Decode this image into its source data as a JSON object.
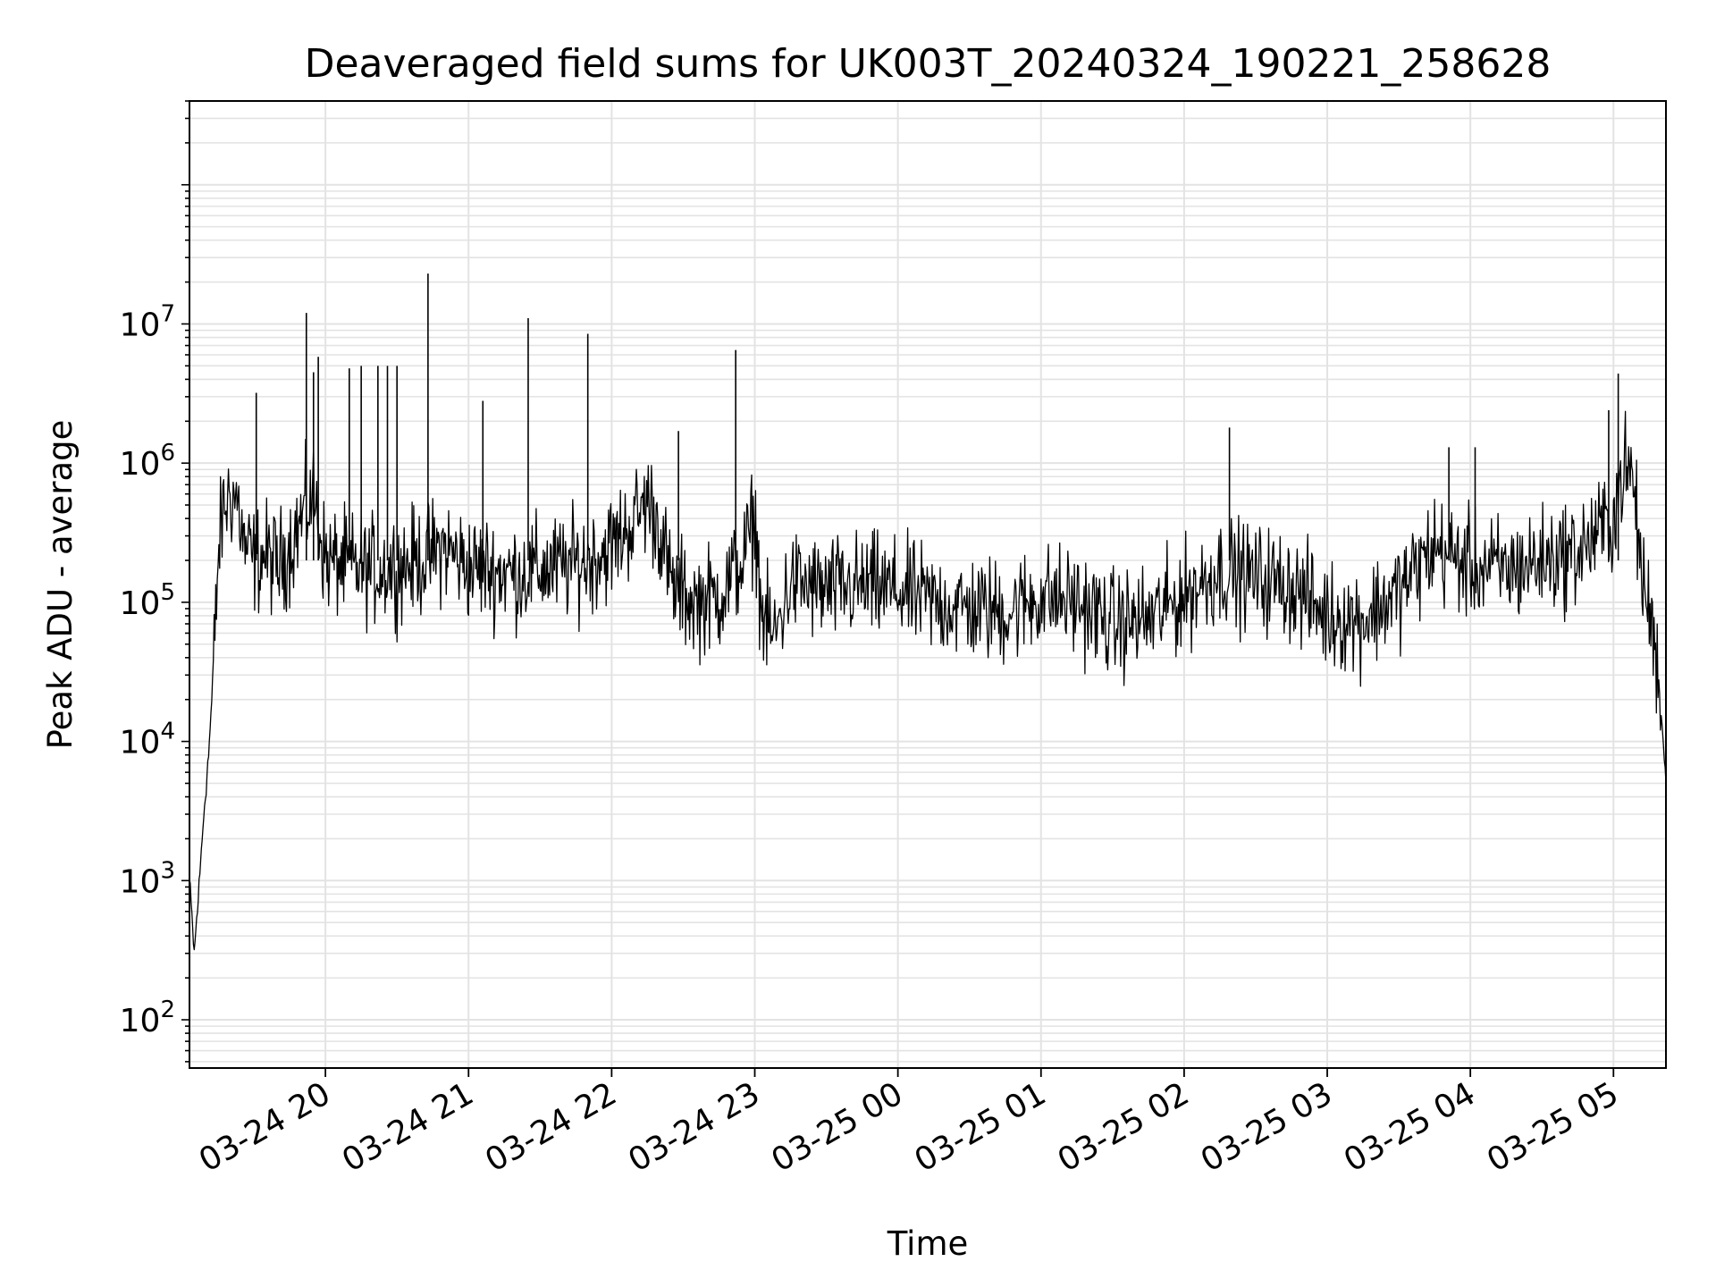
{
  "chart_data": {
    "type": "line",
    "title": "Deaveraged field sums for UK003T_20240324_190221_258628",
    "xlabel": "Time",
    "ylabel": "Peak ADU - average",
    "yscale": "log",
    "ylim": [
      45,
      400000000
    ],
    "xlim": [
      "2024-03-24 19:03",
      "2024-03-25 05:22"
    ],
    "grid": true,
    "line_color": "#000000",
    "grid_color": "#e3e3e3",
    "x_ticks": [
      {
        "t": "2024-03-24 20:00",
        "label": "03-24 20"
      },
      {
        "t": "2024-03-24 21:00",
        "label": "03-24 21"
      },
      {
        "t": "2024-03-24 22:00",
        "label": "03-24 22"
      },
      {
        "t": "2024-03-24 23:00",
        "label": "03-24 23"
      },
      {
        "t": "2024-03-25 00:00",
        "label": "03-25 00"
      },
      {
        "t": "2024-03-25 01:00",
        "label": "03-25 01"
      },
      {
        "t": "2024-03-25 02:00",
        "label": "03-25 02"
      },
      {
        "t": "2024-03-25 03:00",
        "label": "03-25 03"
      },
      {
        "t": "2024-03-25 04:00",
        "label": "03-25 04"
      },
      {
        "t": "2024-03-25 05:00",
        "label": "03-25 05"
      }
    ],
    "y_ticks": [
      {
        "value": 100,
        "base": "10",
        "exp": "2"
      },
      {
        "value": 1000,
        "base": "10",
        "exp": "3"
      },
      {
        "value": 10000,
        "base": "10",
        "exp": "4"
      },
      {
        "value": 100000,
        "base": "10",
        "exp": "5"
      },
      {
        "value": 1000000,
        "base": "10",
        "exp": "6"
      },
      {
        "value": 10000000,
        "base": "10",
        "exp": "7"
      }
    ],
    "series": [
      {
        "points": [
          [
            "2024-03-24 19:03",
            1000
          ],
          [
            "2024-03-24 19:05",
            300
          ],
          [
            "2024-03-24 19:07",
            900
          ],
          [
            "2024-03-24 19:09",
            3000
          ],
          [
            "2024-03-24 19:11",
            8000
          ],
          [
            "2024-03-24 19:13",
            30000
          ],
          [
            "2024-03-24 19:15",
            200000
          ],
          [
            "2024-03-24 19:17",
            450000
          ],
          [
            "2024-03-24 19:20",
            600000
          ],
          [
            "2024-03-24 19:23",
            550000
          ],
          [
            "2024-03-24 19:26",
            250000
          ],
          [
            "2024-03-24 19:30",
            200000
          ],
          [
            "2024-03-24 19:35",
            220000
          ],
          [
            "2024-03-24 19:40",
            180000
          ],
          [
            "2024-03-24 19:45",
            250000
          ],
          [
            "2024-03-24 19:50",
            400000
          ],
          [
            "2024-03-24 19:55",
            600000
          ],
          [
            "2024-03-24 20:00",
            200000
          ],
          [
            "2024-03-24 20:10",
            180000
          ],
          [
            "2024-03-24 20:20",
            170000
          ],
          [
            "2024-03-24 20:30",
            180000
          ],
          [
            "2024-03-24 20:40",
            200000
          ],
          [
            "2024-03-24 20:50",
            250000
          ],
          [
            "2024-03-24 21:00",
            180000
          ],
          [
            "2024-03-24 21:10",
            170000
          ],
          [
            "2024-03-24 21:20",
            160000
          ],
          [
            "2024-03-24 21:30",
            170000
          ],
          [
            "2024-03-24 21:40",
            180000
          ],
          [
            "2024-03-24 21:50",
            200000
          ],
          [
            "2024-03-24 22:00",
            250000
          ],
          [
            "2024-03-24 22:10",
            400000
          ],
          [
            "2024-03-24 22:15",
            550000
          ],
          [
            "2024-03-24 22:20",
            350000
          ],
          [
            "2024-03-24 22:25",
            130000
          ],
          [
            "2024-03-24 22:35",
            100000
          ],
          [
            "2024-03-24 22:45",
            110000
          ],
          [
            "2024-03-24 22:55",
            200000
          ],
          [
            "2024-03-24 23:00",
            400000
          ],
          [
            "2024-03-24 23:03",
            80000
          ],
          [
            "2024-03-24 23:08",
            55000
          ],
          [
            "2024-03-24 23:15",
            140000
          ],
          [
            "2024-03-24 23:30",
            120000
          ],
          [
            "2024-03-24 23:45",
            130000
          ],
          [
            "2024-03-25 00:00",
            120000
          ],
          [
            "2024-03-25 00:15",
            100000
          ],
          [
            "2024-03-25 00:30",
            90000
          ],
          [
            "2024-03-25 00:45",
            85000
          ],
          [
            "2024-03-25 01:00",
            110000
          ],
          [
            "2024-03-25 01:15",
            100000
          ],
          [
            "2024-03-25 01:30",
            70000
          ],
          [
            "2024-03-25 01:45",
            75000
          ],
          [
            "2024-03-25 02:00",
            110000
          ],
          [
            "2024-03-25 02:15",
            170000
          ],
          [
            "2024-03-25 02:30",
            150000
          ],
          [
            "2024-03-25 02:45",
            130000
          ],
          [
            "2024-03-25 03:00",
            80000
          ],
          [
            "2024-03-25 03:15",
            75000
          ],
          [
            "2024-03-25 03:30",
            120000
          ],
          [
            "2024-03-25 03:45",
            250000
          ],
          [
            "2024-03-25 04:00",
            180000
          ],
          [
            "2024-03-25 04:15",
            170000
          ],
          [
            "2024-03-25 04:30",
            200000
          ],
          [
            "2024-03-25 04:45",
            230000
          ],
          [
            "2024-03-25 05:00",
            400000
          ],
          [
            "2024-03-25 05:04",
            900000
          ],
          [
            "2024-03-25 05:08",
            800000
          ],
          [
            "2024-03-25 05:12",
            150000
          ],
          [
            "2024-03-25 05:16",
            70000
          ],
          [
            "2024-03-25 05:19",
            30000
          ],
          [
            "2024-03-25 05:22",
            5000
          ]
        ]
      }
    ],
    "spikes": [
      [
        "2024-03-24 19:31",
        3200000
      ],
      [
        "2024-03-24 19:52",
        12000000
      ],
      [
        "2024-03-24 19:55",
        4500000
      ],
      [
        "2024-03-24 19:57",
        5800000
      ],
      [
        "2024-03-24 20:10",
        4800000
      ],
      [
        "2024-03-24 20:15",
        5000000
      ],
      [
        "2024-03-24 20:22",
        5000000
      ],
      [
        "2024-03-24 20:26",
        5000000
      ],
      [
        "2024-03-24 20:30",
        5000000
      ],
      [
        "2024-03-24 20:43",
        23000000
      ],
      [
        "2024-03-24 21:06",
        2800000
      ],
      [
        "2024-03-24 21:25",
        11000000
      ],
      [
        "2024-03-24 21:50",
        8500000
      ],
      [
        "2024-03-24 22:28",
        1700000
      ],
      [
        "2024-03-24 22:52",
        6500000
      ],
      [
        "2024-03-25 02:19",
        1800000
      ],
      [
        "2024-03-25 03:51",
        1300000
      ],
      [
        "2024-03-25 04:02",
        1300000
      ],
      [
        "2024-03-25 04:58",
        2400000
      ],
      [
        "2024-03-25 05:02",
        4400000
      ]
    ]
  }
}
